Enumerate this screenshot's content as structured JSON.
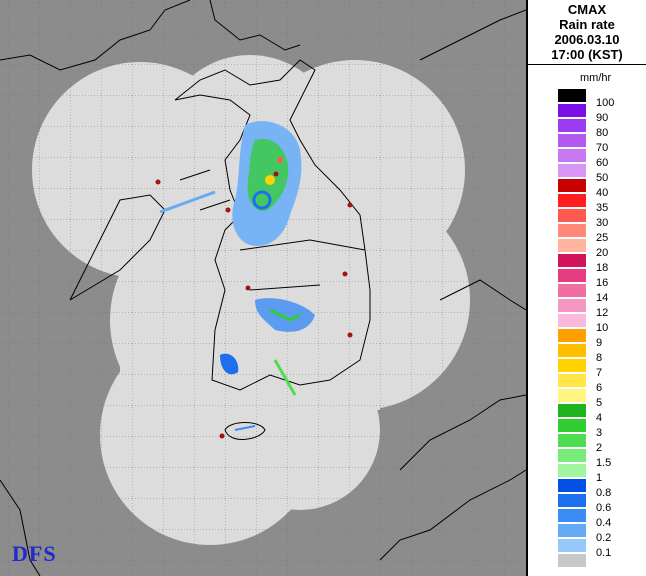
{
  "header": {
    "line1": "CMAX",
    "line2": "Rain rate",
    "line3": "2006.03.10",
    "line4": "17:00 (KST)"
  },
  "unit": "mm/hr",
  "logo": "DFS",
  "legend": [
    {
      "label": "100",
      "color": "#000000"
    },
    {
      "label": "90",
      "color": "#7a10e6"
    },
    {
      "label": "80",
      "color": "#9b3cf0"
    },
    {
      "label": "70",
      "color": "#b45af0"
    },
    {
      "label": "60",
      "color": "#c878f0"
    },
    {
      "label": "50",
      "color": "#d796f5"
    },
    {
      "label": "40",
      "color": "#c80000"
    },
    {
      "label": "35",
      "color": "#ff1e1e"
    },
    {
      "label": "30",
      "color": "#ff5a50"
    },
    {
      "label": "25",
      "color": "#ff8878"
    },
    {
      "label": "20",
      "color": "#ffb4a0"
    },
    {
      "label": "18",
      "color": "#d2145a"
    },
    {
      "label": "16",
      "color": "#e63c82"
    },
    {
      "label": "14",
      "color": "#f06ea0"
    },
    {
      "label": "12",
      "color": "#f596c3"
    },
    {
      "label": "10",
      "color": "#fab9dc"
    },
    {
      "label": "9",
      "color": "#ffa000"
    },
    {
      "label": "8",
      "color": "#ffbe00"
    },
    {
      "label": "7",
      "color": "#ffd200"
    },
    {
      "label": "6",
      "color": "#ffe646"
    },
    {
      "label": "5",
      "color": "#fff582"
    },
    {
      "label": "4",
      "color": "#1eb41e"
    },
    {
      "label": "3",
      "color": "#32cd32"
    },
    {
      "label": "2",
      "color": "#50dc50"
    },
    {
      "label": "1.5",
      "color": "#78eb78"
    },
    {
      "label": "1",
      "color": "#a0f5a0"
    },
    {
      "label": "0.8",
      "color": "#0050e6"
    },
    {
      "label": "0.6",
      "color": "#1e6ef0"
    },
    {
      "label": "0.4",
      "color": "#3c8cf5"
    },
    {
      "label": "0.2",
      "color": "#64aaf5"
    },
    {
      "label": "0.1",
      "color": "#96c8fa"
    },
    {
      "label": "",
      "color": "#c8c8c8"
    }
  ]
}
